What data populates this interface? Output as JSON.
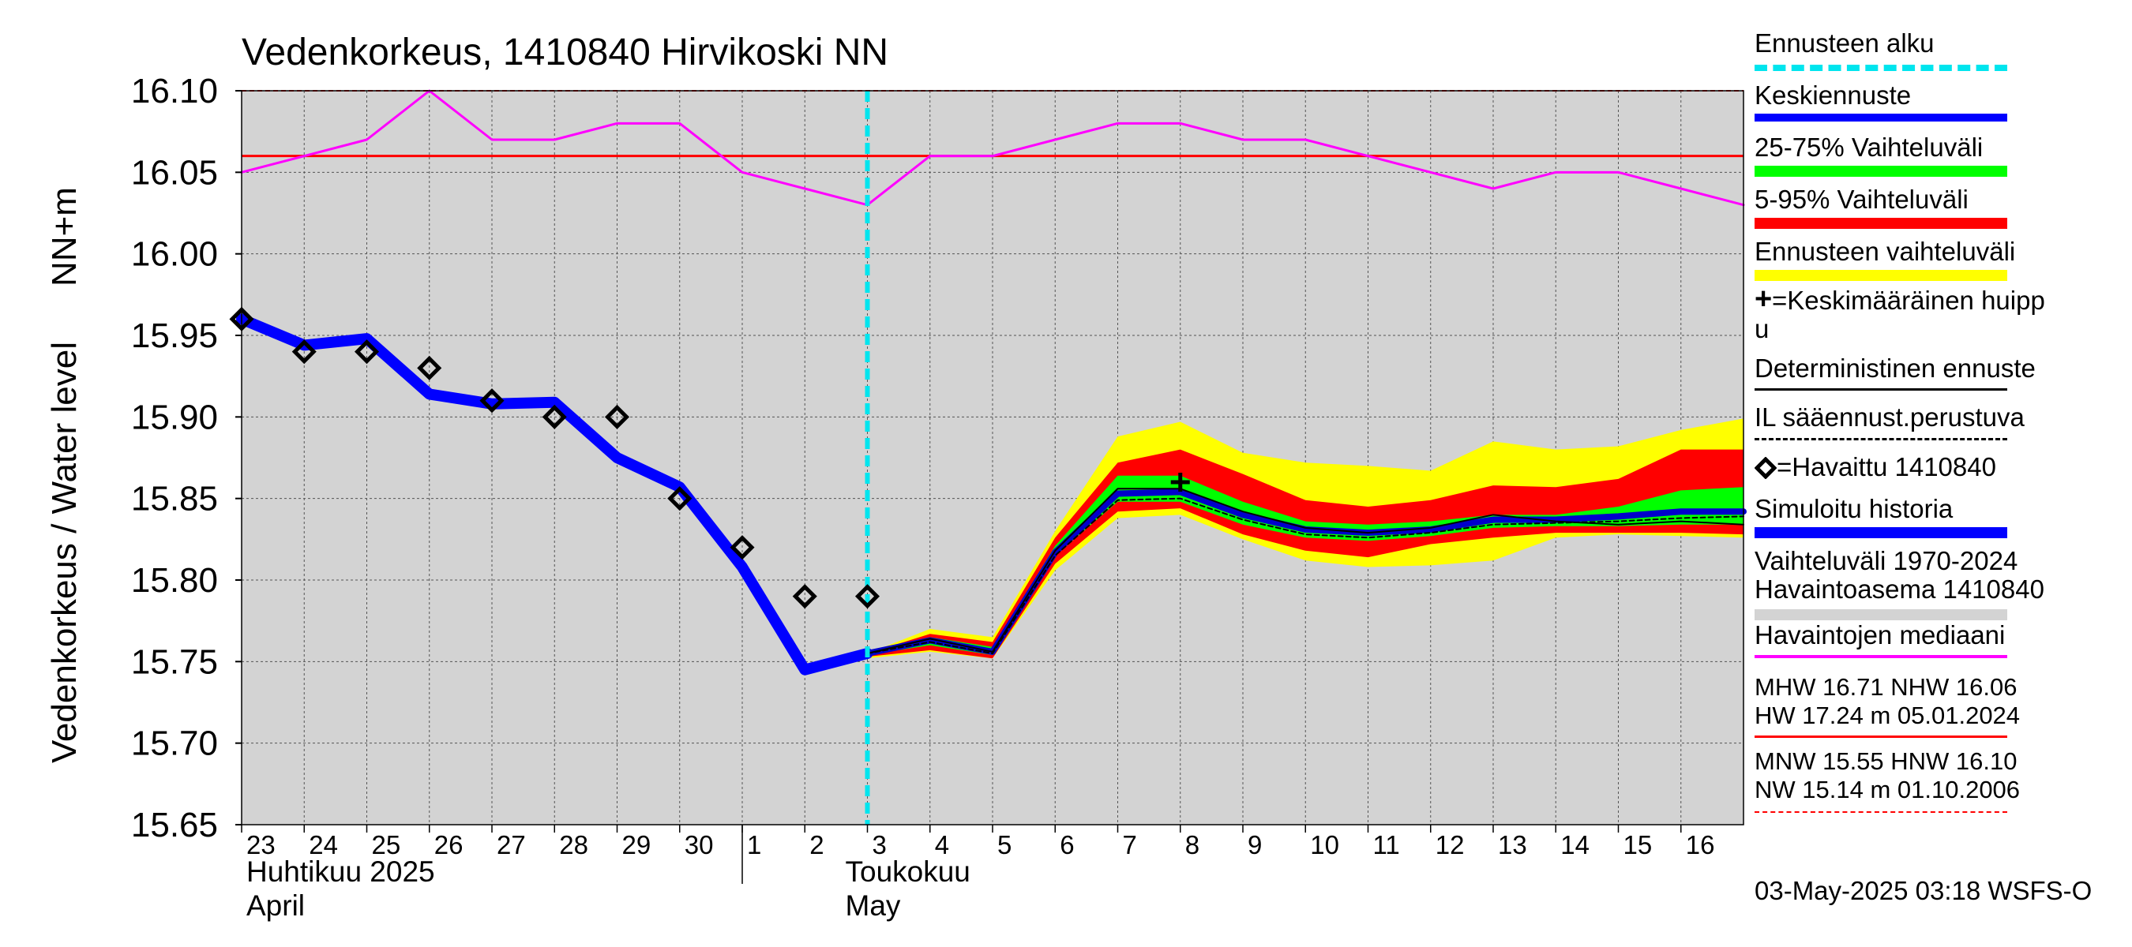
{
  "chart_data": {
    "type": "line",
    "title": "Vedenkorkeus, 1410840 Hirvikoski NN",
    "ylabel_top": "NN+m",
    "ylabel": "Vedenkorkeus / Water level",
    "ylim": [
      15.65,
      16.1
    ],
    "yticks": [
      "16.10",
      "16.05",
      "16.00",
      "15.95",
      "15.90",
      "15.85",
      "15.80",
      "15.75",
      "15.70",
      "15.65"
    ],
    "ytick_values": [
      16.1,
      16.05,
      16.0,
      15.95,
      15.9,
      15.85,
      15.8,
      15.75,
      15.7,
      15.65
    ],
    "x_day_labels": [
      "23",
      "24",
      "25",
      "26",
      "27",
      "28",
      "29",
      "30",
      "1",
      "2",
      "3",
      "4",
      "5",
      "6",
      "7",
      "8",
      "9",
      "10",
      "11",
      "12",
      "13",
      "14",
      "15",
      "16"
    ],
    "x_day_index": [
      0,
      1,
      2,
      3,
      4,
      5,
      6,
      7,
      8,
      9,
      10,
      11,
      12,
      13,
      14,
      15,
      16,
      17,
      18,
      19,
      20,
      21,
      22,
      23
    ],
    "x_month_labels": [
      {
        "fi": "Huhtikuu  2025",
        "en": "April",
        "x": 0
      },
      {
        "fi": "Toukokuu",
        "en": "May",
        "x": 9
      }
    ],
    "xlim": [
      0,
      24
    ],
    "forecast_start_x": 10.0,
    "reference_lines": {
      "nhw": {
        "value": 16.06,
        "color": "#ff0000"
      },
      "hnw": {
        "value": 16.1,
        "color": "#ff0000"
      }
    },
    "series": {
      "median": {
        "name": "Havaintojen mediaani",
        "color": "#ff00ff",
        "x": [
          0,
          1,
          2,
          3,
          4,
          5,
          6,
          7,
          8,
          9,
          10,
          11,
          12,
          13,
          14,
          15,
          16,
          17,
          18,
          19,
          20,
          21,
          22,
          23,
          24
        ],
        "y": [
          16.05,
          16.06,
          16.07,
          16.1,
          16.07,
          16.07,
          16.08,
          16.08,
          16.05,
          16.04,
          16.03,
          16.06,
          16.06,
          16.07,
          16.08,
          16.08,
          16.07,
          16.07,
          16.06,
          16.05,
          16.04,
          16.05,
          16.05,
          16.04,
          16.03
        ]
      },
      "simulated": {
        "name": "Simuloitu historia",
        "color": "#0000ff",
        "x": [
          0,
          1,
          2,
          3,
          4,
          5,
          6,
          7,
          8,
          9,
          10
        ],
        "y": [
          15.96,
          15.944,
          15.948,
          15.914,
          15.908,
          15.909,
          15.875,
          15.857,
          15.808,
          15.745,
          15.755
        ]
      },
      "observed": {
        "name": "Havaittu 1410840",
        "x": [
          0,
          1,
          2,
          3,
          4,
          5,
          6,
          7,
          8,
          9,
          10
        ],
        "y": [
          15.96,
          15.94,
          15.94,
          15.93,
          15.91,
          15.9,
          15.9,
          15.85,
          15.82,
          15.79,
          15.79
        ]
      },
      "forecast_mean": {
        "name": "Keskiennuste",
        "color": "#0000cc",
        "x": [
          10,
          11,
          12,
          13,
          14,
          15,
          16,
          17,
          18,
          19,
          20,
          21,
          22,
          23,
          24
        ],
        "y": [
          15.755,
          15.763,
          15.756,
          15.817,
          15.853,
          15.854,
          15.84,
          15.831,
          15.829,
          15.831,
          15.837,
          15.837,
          15.839,
          15.842,
          15.842
        ]
      },
      "deterministic": {
        "name": "Deterministinen ennuste",
        "color": "#000000",
        "x": [
          10,
          11,
          12,
          13,
          14,
          15,
          16,
          17,
          18,
          19,
          20,
          21,
          22,
          23,
          24
        ],
        "y": [
          15.755,
          15.764,
          15.756,
          15.818,
          15.856,
          15.856,
          15.842,
          15.832,
          15.829,
          15.832,
          15.84,
          15.836,
          15.834,
          15.836,
          15.834
        ]
      },
      "il_forecast": {
        "name": "IL sääennust.perustuva",
        "color": "#000000",
        "x": [
          10,
          11,
          12,
          13,
          14,
          15,
          16,
          17,
          18,
          19,
          20,
          21,
          22,
          23,
          24
        ],
        "y": [
          15.755,
          15.762,
          15.755,
          15.815,
          15.849,
          15.85,
          15.837,
          15.828,
          15.826,
          15.829,
          15.834,
          15.835,
          15.836,
          15.838,
          15.839
        ]
      },
      "band_forecast": {
        "name": "Ennusteen vaihteluväli",
        "color": "#ffff00",
        "x": [
          10,
          11,
          12,
          13,
          14,
          15,
          16,
          17,
          18,
          19,
          20,
          21,
          22,
          23,
          24
        ],
        "upper": [
          15.755,
          15.77,
          15.765,
          15.83,
          15.888,
          15.897,
          15.878,
          15.872,
          15.87,
          15.867,
          15.885,
          15.88,
          15.882,
          15.892,
          15.899
        ],
        "lower": [
          15.752,
          15.756,
          15.752,
          15.806,
          15.838,
          15.84,
          15.825,
          15.812,
          15.808,
          15.809,
          15.812,
          15.826,
          15.828,
          15.827,
          15.826
        ]
      },
      "band_5_95": {
        "name": "5-95% Vaihteluväli",
        "color": "#ff0000",
        "x": [
          10,
          11,
          12,
          13,
          14,
          15,
          16,
          17,
          18,
          19,
          20,
          21,
          22,
          23,
          24
        ],
        "upper": [
          15.755,
          15.767,
          15.762,
          15.826,
          15.872,
          15.88,
          15.865,
          15.849,
          15.845,
          15.849,
          15.858,
          15.857,
          15.862,
          15.88,
          15.88
        ],
        "lower": [
          15.753,
          15.757,
          15.752,
          15.81,
          15.842,
          15.844,
          15.828,
          15.818,
          15.814,
          15.822,
          15.826,
          15.829,
          15.829,
          15.829,
          15.828
        ]
      },
      "band_25_75": {
        "name": "25-75% Vaihteluväli",
        "color": "#00ff00",
        "x": [
          10,
          11,
          12,
          13,
          14,
          15,
          16,
          17,
          18,
          19,
          20,
          21,
          22,
          23,
          24
        ],
        "upper": [
          15.756,
          15.765,
          15.759,
          15.821,
          15.864,
          15.864,
          15.848,
          15.836,
          15.834,
          15.836,
          15.84,
          15.84,
          15.845,
          15.855,
          15.857
        ],
        "lower": [
          15.754,
          15.76,
          15.754,
          15.815,
          15.848,
          15.848,
          15.834,
          15.826,
          15.824,
          15.827,
          15.832,
          15.833,
          15.833,
          15.834,
          15.834
        ]
      },
      "peak_marker": {
        "name": "Keskimääräinen huippu",
        "x": 15,
        "y": 15.86
      }
    },
    "legend": {
      "forecast_start": "Ennusteen alku",
      "mean": "Keskiennuste",
      "p25_75": "25-75% Vaihteluväli",
      "p5_95": "5-95% Vaihteluväli",
      "forecast_range": "Ennusteen vaihteluväli",
      "peak": "=Keskimääräinen huipp",
      "peak_cont": "u",
      "deterministic": "Deterministinen ennuste",
      "il": "IL sääennust.perustuva",
      "observed": "=Havaittu 1410840",
      "simulated": "Simuloitu historia",
      "hist_range": "Vaihteluväli 1970-2024",
      "hist_station": " Havaintoasema 1410840",
      "median": "Havaintojen mediaani",
      "stats1_line1": "MHW  16.71 NHW  16.06",
      "stats1_line2": "HW  17.24 m 05.01.2024",
      "stats2_line1": "MNW  15.55 HNW  16.10",
      "stats2_line2": "NW  15.14 m 01.10.2006"
    },
    "footer": "03-May-2025 03:18 WSFS-O",
    "colors": {
      "plot_bg": "#d3d3d3",
      "forecast_start": "#00e5ee",
      "mean": "#0000ff",
      "p25_75": "#00ff00",
      "p5_95": "#ff0000",
      "forecast_range": "#ffff00",
      "hist_range": "#d3d3d3",
      "median": "#ff00ff",
      "stat_line": "#ff0000"
    }
  }
}
